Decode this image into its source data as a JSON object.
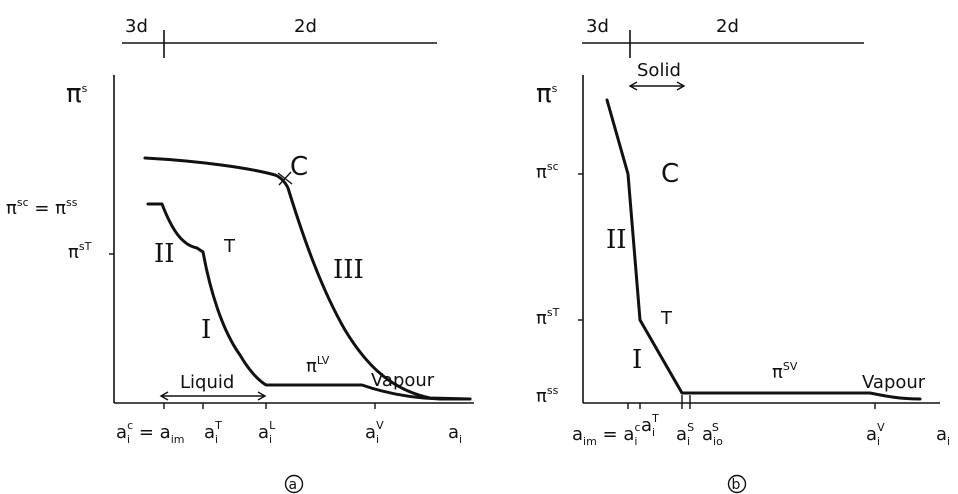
{
  "panel_a": {
    "dim_left": "3d",
    "dim_right": "2d",
    "y_label": "π",
    "y_label_sup": "s",
    "y_tick_sc_label": "π",
    "y_tick_sc_sup_1": "sc",
    "y_tick_sc_eq": " = π",
    "y_tick_sc_sup_2": "ss",
    "y_tick_sT_label": "π",
    "y_tick_sT_sup": "sT",
    "point_C": "C",
    "region_T": "T",
    "roman_I": "I",
    "roman_II": "II",
    "roman_III": "III",
    "pi_LV": "π",
    "pi_LV_sup": "LV",
    "liquid_label": "Liquid",
    "vapour_label": "Vapour",
    "x_tick_1_a": "a",
    "x_tick_1_sub": "i",
    "x_tick_1_sup": "c",
    "x_tick_1_eq": " = a",
    "x_tick_1_sub2": "im",
    "x_tick_2_a": "a",
    "x_tick_2_sub": "i",
    "x_tick_2_sup": "T",
    "x_tick_3_a": "a",
    "x_tick_3_sub": "i",
    "x_tick_3_sup": "L",
    "x_tick_4_a": "a",
    "x_tick_4_sub": "i",
    "x_tick_4_sup": "V",
    "x_axis_a": "a",
    "x_axis_sub": "i",
    "caption": "a"
  },
  "panel_b": {
    "dim_left": "3d",
    "dim_right": "2d",
    "y_label": "π",
    "y_label_sup": "s",
    "y_tick_sc_label": "π",
    "y_tick_sc_sup": "sc",
    "y_tick_sT_label": "π",
    "y_tick_sT_sup": "sT",
    "y_tick_ss_label": "π",
    "y_tick_ss_sup": "ss",
    "point_C": "C",
    "region_T": "T",
    "roman_I": "I",
    "roman_II": "II",
    "solid_label": "Solid",
    "pi_SV": "π",
    "pi_SV_sup": "SV",
    "vapour_label": "Vapour",
    "x_tick_1_a": "a",
    "x_tick_1_sub": "im",
    "x_tick_1_eq": " = a",
    "x_tick_1_sub2": "i",
    "x_tick_1_sup2": "c",
    "x_tick_2_a": "a",
    "x_tick_2_sub": "i",
    "x_tick_2_sup": "T",
    "x_tick_3_a": "a",
    "x_tick_3_sub": "i",
    "x_tick_3_sup": "S",
    "x_tick_4_a": "a",
    "x_tick_4_sub": "io",
    "x_tick_4_sup": "S",
    "x_tick_5_a": "a",
    "x_tick_5_sub": "i",
    "x_tick_5_sup": "V",
    "x_axis_a": "a",
    "x_axis_sub": "i",
    "caption": "b"
  }
}
